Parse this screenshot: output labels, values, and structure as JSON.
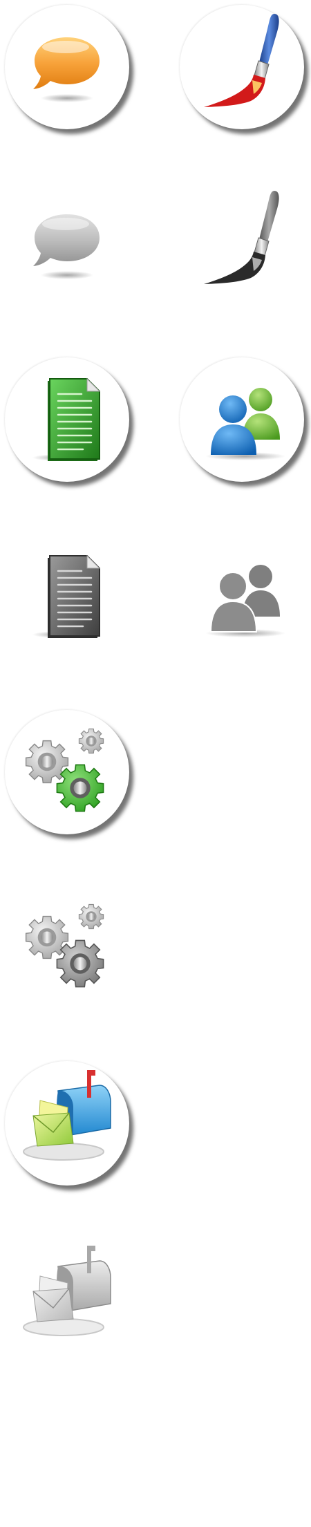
{
  "colors": {
    "background": "#ffffff",
    "bubble_orange": "#f7a23a",
    "paint_blue": "#2f5fb0",
    "paint_red": "#d21a1a",
    "document_green": "#38a832",
    "user_blue": "#1f7fd0",
    "user_green": "#6fbf3a",
    "gear_green": "#3fb52e",
    "mailbox_blue": "#3a9ee0",
    "inactive_gray": "#8a8a8a"
  },
  "icons": [
    {
      "name": "speech-bubble-icon",
      "state": "active"
    },
    {
      "name": "paintbrush-icon",
      "state": "active"
    },
    {
      "name": "speech-bubble-icon",
      "state": "inactive"
    },
    {
      "name": "paintbrush-icon",
      "state": "inactive"
    },
    {
      "name": "document-icon",
      "state": "active"
    },
    {
      "name": "users-icon",
      "state": "active"
    },
    {
      "name": "document-icon",
      "state": "inactive"
    },
    {
      "name": "users-icon",
      "state": "inactive"
    },
    {
      "name": "gears-icon",
      "state": "active"
    },
    {
      "name": "gears-icon",
      "state": "inactive"
    },
    {
      "name": "mailbox-icon",
      "state": "active"
    },
    {
      "name": "mailbox-icon",
      "state": "inactive"
    }
  ]
}
